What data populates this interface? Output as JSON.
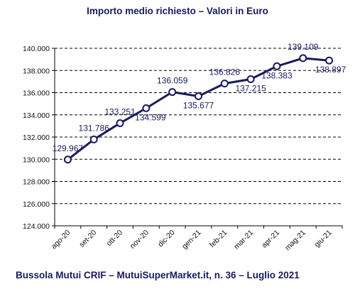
{
  "chart_data": {
    "type": "line",
    "title": "Importo medio richiesto – Valori in Euro",
    "categories": [
      "ago-20",
      "set-20",
      "ott-20",
      "nov-20",
      "dic-20",
      "gen-21",
      "feb-21",
      "mar-21",
      "apr-21",
      "mag-21",
      "giu-21"
    ],
    "series": [
      {
        "values": [
          129967,
          131786,
          133251,
          134599,
          136059,
          135677,
          136826,
          137215,
          138383,
          139109,
          138897
        ]
      }
    ],
    "data_labels": [
      "129.967",
      "131.786",
      "133.251",
      "134.599",
      "136.059",
      "135.677",
      "136.826",
      "137.215",
      "138.383",
      "139.109",
      "138.897"
    ],
    "yticks": [
      "124.000",
      "126.000",
      "128.000",
      "130.000",
      "132.000",
      "134.000",
      "136.000",
      "138.000",
      "140.000"
    ],
    "ylim": [
      124000,
      140000
    ],
    "grid": "dashed horizontal",
    "colors": {
      "line": "#1a1a5e",
      "text": "#1a1a5e",
      "grid": "#000000"
    }
  },
  "footer": "Bussola Mutui CRIF – MutuiSuperMarket.it, n. 36 – Luglio 2021"
}
